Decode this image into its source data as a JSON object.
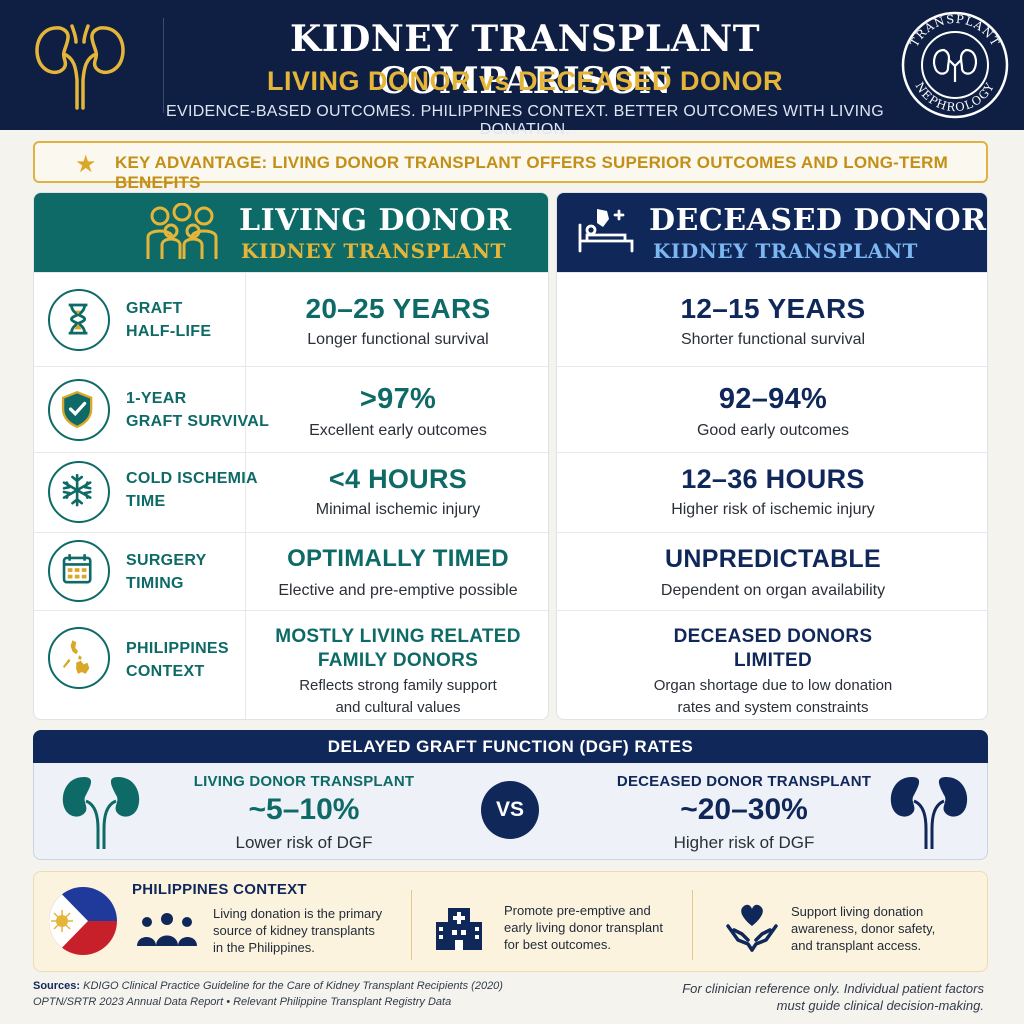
{
  "header": {
    "title": "KIDNEY TRANSPLANT COMPARISON",
    "subtitle": "LIVING DONOR vs DECEASED DONOR",
    "tagline": "EVIDENCE-BASED OUTCOMES. PHILIPPINES CONTEXT. BETTER OUTCOMES WITH LIVING DONATION.",
    "badge_top": "TRANSPLANT",
    "badge_bottom": "NEPHROLOGY"
  },
  "key_advantage": "KEY ADVANTAGE: LIVING DONOR TRANSPLANT OFFERS SUPERIOR OUTCOMES AND LONG-TERM BENEFITS",
  "living": {
    "title": "LIVING DONOR",
    "subtitle": "KIDNEY TRANSPLANT"
  },
  "deceased": {
    "title": "DECEASED DONOR",
    "subtitle": "KIDNEY TRANSPLANT"
  },
  "rows": [
    {
      "icon": "hourglass-icon",
      "label_1": "GRAFT",
      "label_2": "HALF-LIFE",
      "living_value": "20–25 YEARS",
      "living_desc_1": "Longer functional survival",
      "deceased_value": "12–15 YEARS",
      "deceased_desc_1": "Shorter functional survival"
    },
    {
      "icon": "shield-check-icon",
      "label_1": "1-YEAR",
      "label_2": "GRAFT SURVIVAL",
      "living_value": ">97%",
      "living_desc_1": "Excellent early outcomes",
      "deceased_value": "92–94%",
      "deceased_desc_1": "Good early outcomes"
    },
    {
      "icon": "snowflake-icon",
      "label_1": "COLD ISCHEMIA",
      "label_2": "TIME",
      "living_value": "<4 HOURS",
      "living_desc_1": "Minimal ischemic injury",
      "deceased_value": "12–36 HOURS",
      "deceased_desc_1": "Higher risk of ischemic injury"
    },
    {
      "icon": "calendar-icon",
      "label_1": "SURGERY",
      "label_2": "TIMING",
      "living_value": "OPTIMALLY TIMED",
      "living_desc_1": "Elective and pre-emptive possible",
      "deceased_value": "UNPREDICTABLE",
      "deceased_desc_1": "Dependent on organ availability"
    },
    {
      "icon": "philippines-map-icon",
      "label_1": "PHILIPPINES",
      "label_2": "CONTEXT",
      "living_value_1": "MOSTLY LIVING RELATED",
      "living_value_2": "FAMILY DONORS",
      "living_desc_1": "Reflects strong family support",
      "living_desc_2": "and cultural values",
      "deceased_value_1": "DECEASED DONORS",
      "deceased_value_2": "LIMITED",
      "deceased_desc_1": "Organ shortage due to low donation",
      "deceased_desc_2": "rates and system constraints"
    }
  ],
  "dgf": {
    "title": "DELAYED GRAFT FUNCTION (DGF) RATES",
    "living_label": "LIVING DONOR TRANSPLANT",
    "living_value": "~5–10%",
    "living_desc": "Lower risk of DGF",
    "vs": "VS",
    "deceased_label": "DECEASED DONOR TRANSPLANT",
    "deceased_value": "~20–30%",
    "deceased_desc": "Higher risk of DGF"
  },
  "philippines": {
    "heading": "PHILIPPINES CONTEXT",
    "items": [
      {
        "icon": "people-icon",
        "line_1": "Living donation is the primary",
        "line_2": "source of kidney transplants",
        "line_3": "in the Philippines."
      },
      {
        "icon": "hospital-icon",
        "line_1": "Promote pre-emptive and",
        "line_2": "early living donor transplant",
        "line_3": "for best outcomes."
      },
      {
        "icon": "heart-hands-icon",
        "line_1": "Support living donation",
        "line_2": "awareness, donor safety,",
        "line_3": "and transplant access."
      }
    ]
  },
  "footer": {
    "sources_label": "Sources:",
    "sources_1": "KDIGO Clinical Practice Guideline for the Care of Kidney Transplant Recipients (2020)",
    "sources_2": "OPTN/SRTR 2023 Annual Data Report  •  Relevant Philippine Transplant Registry Data",
    "disclaimer_1": "For clinician reference only. Individual patient factors",
    "disclaimer_2": "must guide clinical decision-making."
  },
  "colors": {
    "navy": "#0f1f44",
    "teal": "#0d6a66",
    "gold": "#e5b53a",
    "light_blue": "#7db7f2"
  }
}
